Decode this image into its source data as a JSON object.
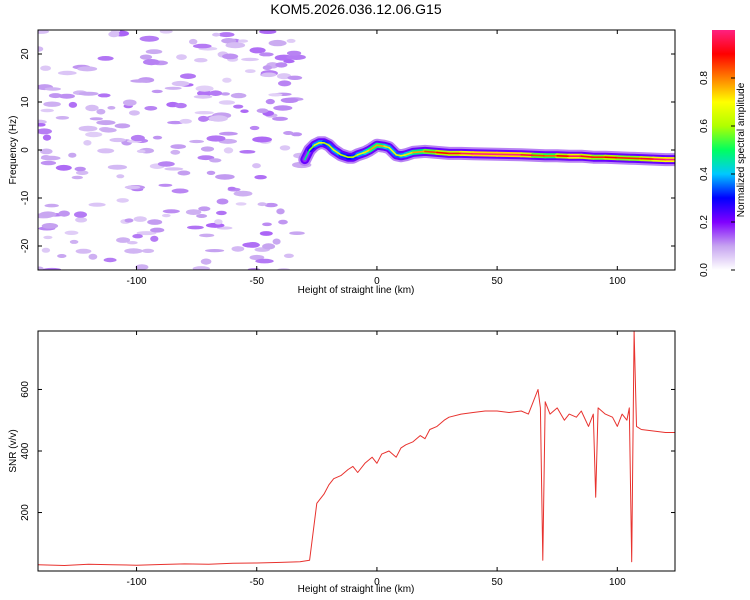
{
  "title": "KOM5.2026.036.12.06.G15",
  "chart_data": [
    {
      "type": "heatmap",
      "xlabel": "Height of straight line (km)",
      "ylabel": "Frequency (Hz)",
      "xlim": [
        -141,
        124
      ],
      "ylim": [
        -25,
        25
      ],
      "x_ticks": [
        -100,
        -50,
        0,
        50,
        100
      ],
      "y_ticks": [
        -20,
        -10,
        0,
        10,
        20
      ],
      "colorbar": {
        "label": "Normalized spectral amplitude",
        "range": [
          0,
          1
        ],
        "ticks": [
          0.0,
          0.2,
          0.4,
          0.6,
          0.8
        ],
        "tick_labels": [
          "0.0",
          "0.2",
          "0.4",
          "0.6",
          "0.8"
        ],
        "colormap": [
          "#ffffff",
          "#c6a3f0",
          "#8000ff",
          "#0000ff",
          "#00c8ff",
          "#00ff60",
          "#b0ff00",
          "#ffff00",
          "#ff8000",
          "#ff0000",
          "#ff2080"
        ]
      },
      "noise_region": {
        "x_range": [
          -141,
          -30
        ],
        "y_range": [
          -25,
          25
        ],
        "typical_amplitude": 0.05
      },
      "signal_track": {
        "x": [
          -30,
          -28,
          -26,
          -24,
          -22,
          -20,
          -18,
          -15,
          -12,
          -10,
          -8,
          -5,
          -3,
          0,
          3,
          5,
          8,
          10,
          12,
          15,
          20,
          25,
          30,
          35,
          40,
          50,
          60,
          65,
          70,
          75,
          80,
          85,
          90,
          95,
          100,
          105,
          110,
          115,
          120,
          124
        ],
        "y": [
          -2,
          0,
          1,
          1.5,
          1.5,
          1,
          0,
          -1,
          -1.5,
          -1.5,
          -1,
          -0.5,
          0,
          1,
          0.8,
          0.5,
          -1,
          -1.2,
          -1,
          -0.5,
          -0.3,
          -0.5,
          -0.7,
          -0.7,
          -0.8,
          -0.9,
          -1,
          -1.1,
          -1.2,
          -1.2,
          -1.3,
          -1.3,
          -1.5,
          -1.5,
          -1.6,
          -1.7,
          -1.8,
          -1.9,
          -2,
          -2
        ],
        "amplitude": [
          0.15,
          0.2,
          0.35,
          0.4,
          0.35,
          0.3,
          0.4,
          0.35,
          0.3,
          0.3,
          0.35,
          0.4,
          0.45,
          0.5,
          0.45,
          0.4,
          0.35,
          0.35,
          0.4,
          0.45,
          0.5,
          0.6,
          0.6,
          0.65,
          0.7,
          0.75,
          0.7,
          0.6,
          0.5,
          0.55,
          0.65,
          0.7,
          0.55,
          0.6,
          0.6,
          0.55,
          0.6,
          0.65,
          0.7,
          0.7
        ]
      }
    },
    {
      "type": "line",
      "xlabel": "Height of straight line (km)",
      "ylabel": "SNR (v/v)",
      "xlim": [
        -141,
        124
      ],
      "ylim": [
        10,
        790
      ],
      "x_ticks": [
        -100,
        -50,
        0,
        50,
        100
      ],
      "y_ticks": [
        200,
        400,
        600
      ],
      "color": "#e8322e",
      "series": [
        {
          "x": [
            -141,
            -130,
            -120,
            -110,
            -100,
            -90,
            -80,
            -70,
            -60,
            -50,
            -40,
            -32,
            -28,
            -25,
            -22,
            -20,
            -18,
            -15,
            -12,
            -10,
            -8,
            -5,
            -2,
            0,
            2,
            5,
            8,
            10,
            12,
            15,
            18,
            20,
            22,
            25,
            28,
            30,
            35,
            40,
            45,
            50,
            55,
            60,
            63,
            65,
            67,
            68,
            69,
            70,
            72,
            75,
            78,
            80,
            83,
            85,
            88,
            90,
            91,
            92,
            95,
            98,
            100,
            102,
            104,
            105,
            106,
            107,
            108,
            110,
            115,
            120,
            124
          ],
          "y": [
            30,
            28,
            32,
            30,
            29,
            31,
            33,
            32,
            35,
            36,
            38,
            40,
            45,
            230,
            260,
            290,
            310,
            320,
            340,
            350,
            330,
            360,
            380,
            360,
            390,
            400,
            380,
            410,
            420,
            430,
            450,
            440,
            470,
            480,
            500,
            510,
            520,
            525,
            530,
            530,
            525,
            530,
            520,
            560,
            600,
            540,
            45,
            560,
            520,
            540,
            500,
            520,
            510,
            530,
            480,
            520,
            250,
            540,
            520,
            510,
            480,
            520,
            500,
            540,
            40,
            790,
            480,
            470,
            465,
            460,
            460
          ]
        }
      ]
    }
  ]
}
